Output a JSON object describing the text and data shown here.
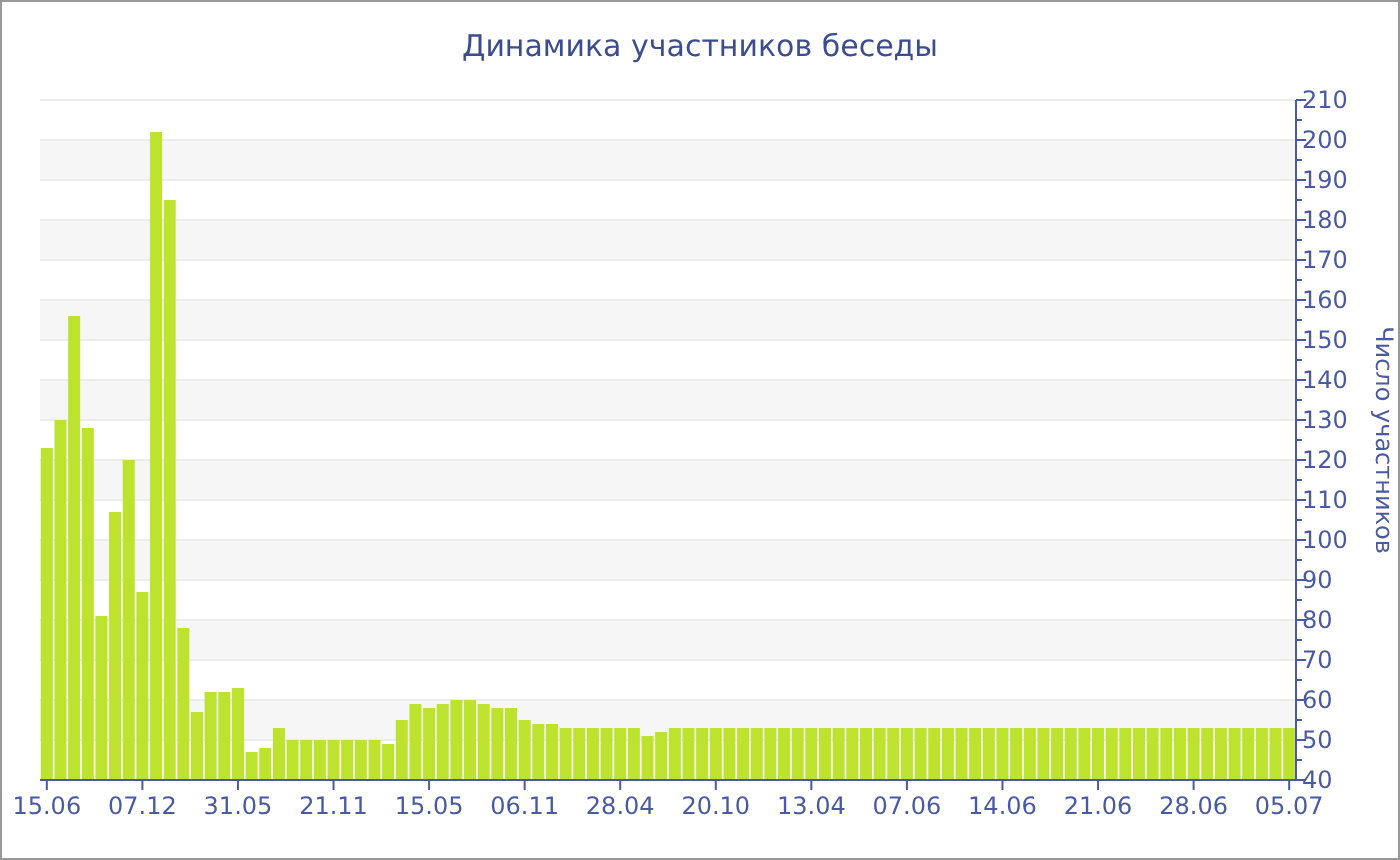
{
  "chart_data": {
    "type": "bar",
    "title": "Динамика участников беседы",
    "ylabel": "Число участников",
    "categories": [
      "15.06",
      null,
      null,
      null,
      null,
      null,
      null,
      "07.12",
      null,
      null,
      null,
      null,
      null,
      null,
      "31.05",
      null,
      null,
      null,
      null,
      null,
      null,
      "21.11",
      null,
      null,
      null,
      null,
      null,
      null,
      "15.05",
      null,
      null,
      null,
      null,
      null,
      null,
      "06.11",
      null,
      null,
      null,
      null,
      null,
      null,
      "28.04",
      null,
      null,
      null,
      null,
      null,
      null,
      "20.10",
      null,
      null,
      null,
      null,
      null,
      null,
      "13.04",
      null,
      null,
      null,
      null,
      null,
      null,
      "07.06",
      null,
      null,
      null,
      null,
      null,
      null,
      "14.06",
      null,
      null,
      null,
      null,
      null,
      null,
      "21.06",
      null,
      null,
      null,
      null,
      null,
      null,
      "28.06",
      null,
      null,
      null,
      null,
      null,
      null,
      "05.07"
    ],
    "values": [
      123,
      130,
      156,
      128,
      81,
      107,
      120,
      87,
      202,
      185,
      78,
      57,
      62,
      62,
      63,
      47,
      48,
      53,
      50,
      50,
      50,
      50,
      50,
      50,
      50,
      49,
      55,
      59,
      58,
      59,
      60,
      60,
      59,
      58,
      58,
      55,
      54,
      54,
      53,
      53,
      53,
      53,
      53,
      53,
      51,
      52,
      53,
      53,
      53,
      53,
      53,
      53,
      53,
      53,
      53,
      53,
      53,
      53,
      53,
      53,
      53,
      53,
      53,
      53,
      53,
      53,
      53,
      53,
      53,
      53,
      53,
      53,
      53,
      53,
      53,
      53,
      53,
      53,
      53,
      53,
      53,
      53,
      53,
      53,
      53,
      53,
      53,
      53,
      53,
      53,
      53,
      53
    ],
    "color": "#bde32f",
    "ylim": [
      40,
      210
    ],
    "yticks": [
      40,
      50,
      60,
      70,
      80,
      90,
      100,
      110,
      120,
      130,
      140,
      150,
      160,
      170,
      180,
      190,
      200,
      210
    ],
    "grid": "y"
  }
}
